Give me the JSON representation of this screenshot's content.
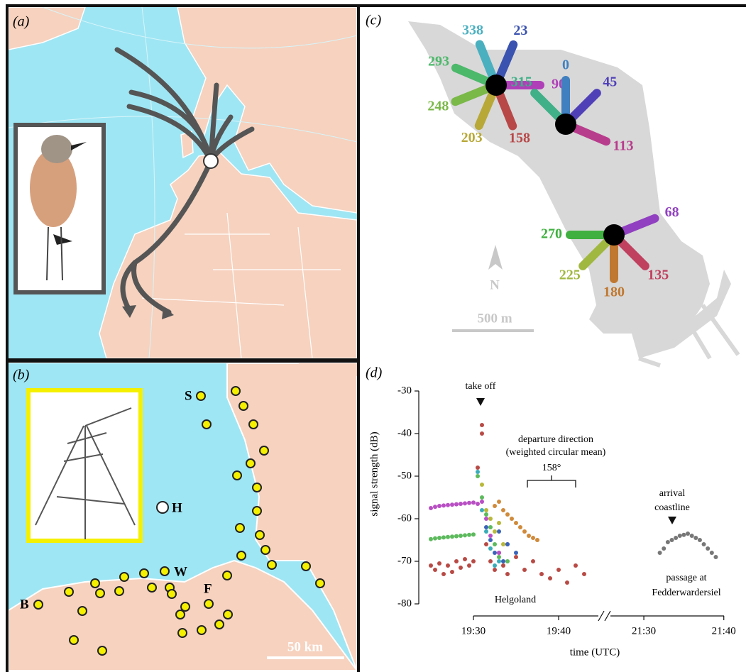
{
  "panel_a": {
    "label": "(a)"
  },
  "panel_b": {
    "label": "(b)",
    "sites": [
      "S",
      "H",
      "W",
      "F",
      "B"
    ],
    "scale": "50 km"
  },
  "panel_c": {
    "label": "(c)",
    "north": "N",
    "scale": "500 m",
    "stations": [
      {
        "antennas": [
          {
            "bearing": 338,
            "color": "#4ab0c0"
          },
          {
            "bearing": 23,
            "color": "#3a52b0"
          },
          {
            "bearing": 293,
            "color": "#4cb86a"
          },
          {
            "bearing": 90,
            "color": "#b040b8"
          },
          {
            "bearing": 248,
            "color": "#7ab848"
          },
          {
            "bearing": 203,
            "color": "#b8a838"
          },
          {
            "bearing": 158,
            "color": "#b84848"
          }
        ]
      },
      {
        "antennas": [
          {
            "bearing": 0,
            "color": "#4080c0"
          },
          {
            "bearing": 45,
            "color": "#5040b8"
          },
          {
            "bearing": 315,
            "color": "#40b088"
          },
          {
            "bearing": 113,
            "color": "#b83c8c"
          }
        ]
      },
      {
        "antennas": [
          {
            "bearing": 68,
            "color": "#9040c0"
          },
          {
            "bearing": 270,
            "color": "#40b040"
          },
          {
            "bearing": 225,
            "color": "#a0b840"
          },
          {
            "bearing": 180,
            "color": "#c07830"
          },
          {
            "bearing": 135,
            "color": "#c04060"
          }
        ]
      }
    ]
  },
  "chart_data": {
    "type": "scatter",
    "panel_label": "(d)",
    "xlabel": "time (UTC)",
    "ylabel": "signal strength (dB)",
    "segments": [
      {
        "xlim": [
          1164,
          1185.5
        ],
        "xticks": [
          {
            "value": 1170,
            "label": "19:30"
          },
          {
            "value": 1180,
            "label": "19:40"
          }
        ]
      },
      {
        "xlim": [
          1286,
          1301
        ],
        "xticks": [
          {
            "value": 1290,
            "label": "21:30"
          },
          {
            "value": 1300,
            "label": "21:40"
          }
        ]
      }
    ],
    "ylim": [
      -80,
      -30
    ],
    "yticks": [
      -30,
      -40,
      -50,
      -60,
      -70,
      -80
    ],
    "annotations": [
      "take off",
      "departure direction",
      "(weighted circular mean)",
      "158°",
      "arrival",
      "coastline",
      "passage at",
      "Fedderwardersiel",
      "Helgoland"
    ],
    "series": [
      {
        "color": "#b84a45",
        "x": [
          1165,
          1165.5,
          1166,
          1166.5,
          1167,
          1167.5,
          1168,
          1168.5,
          1169,
          1169.5,
          1170,
          1170.5,
          1171,
          1171,
          1171.5,
          1172,
          1172.5,
          1173,
          1173.5,
          1174,
          1175,
          1176,
          1177,
          1178,
          1179,
          1180,
          1181,
          1182,
          1183
        ],
        "values": [
          -71,
          -72,
          -70.5,
          -73,
          -71,
          -72.5,
          -70,
          -71.5,
          -69.5,
          -71,
          -70,
          -48,
          -38,
          -40,
          -66,
          -70,
          -72,
          -68,
          -71,
          -73,
          -69,
          -72,
          -70,
          -73,
          -74,
          -72,
          -75,
          -71,
          -73
        ]
      },
      {
        "color": "#b94fc4",
        "x": [
          1165,
          1165.5,
          1166,
          1166.5,
          1167,
          1167.5,
          1168,
          1168.5,
          1169,
          1169.5,
          1170,
          1170.5,
          1171,
          1171.5,
          1172,
          1173,
          1174
        ],
        "values": [
          -57.5,
          -57.2,
          -57,
          -56.9,
          -56.8,
          -56.7,
          -56.6,
          -56.5,
          -56.4,
          -56.3,
          -56.2,
          -56.5,
          -56,
          -60,
          -64,
          -68,
          -66
        ]
      },
      {
        "color": "#5cba5c",
        "x": [
          1165,
          1165.5,
          1166,
          1166.5,
          1167,
          1167.5,
          1168,
          1168.5,
          1169,
          1169.5,
          1170,
          1170.5,
          1171,
          1171.5,
          1172,
          1172.5,
          1173,
          1174
        ],
        "values": [
          -64.8,
          -64.6,
          -64.5,
          -64.4,
          -64.3,
          -64.2,
          -64.1,
          -64,
          -63.9,
          -63.8,
          -63.7,
          -50,
          -55,
          -59,
          -62,
          -66,
          -69,
          -70
        ]
      },
      {
        "color": "#d08a3a",
        "x": [
          1172.5,
          1173,
          1173.5,
          1174,
          1174.5,
          1175,
          1175.5,
          1176,
          1176.5,
          1177,
          1177.5
        ],
        "values": [
          -57,
          -56,
          -58,
          -59,
          -60,
          -61,
          -62,
          -63,
          -64,
          -64.5,
          -65
        ]
      },
      {
        "color": "#b8b83a",
        "x": [
          1171,
          1171.5,
          1172,
          1172.5,
          1173,
          1173.5
        ],
        "values": [
          -52,
          -58,
          -60,
          -63,
          -61,
          -66
        ]
      },
      {
        "color": "#3aacb8",
        "x": [
          1170.5,
          1171,
          1171.5,
          1172,
          1172.5,
          1173
        ],
        "values": [
          -49,
          -58,
          -63,
          -67,
          -71,
          -70
        ]
      },
      {
        "color": "#3a64b8",
        "x": [
          1171.5,
          1172,
          1172.5,
          1173,
          1173.5,
          1174,
          1175
        ],
        "values": [
          -62,
          -65,
          -68,
          -63,
          -70,
          -66,
          -68
        ]
      },
      {
        "color": "#777777",
        "x": [
          1292,
          1292.5,
          1293,
          1293.5,
          1294,
          1294.5,
          1295,
          1295.5,
          1296,
          1296.5,
          1297,
          1297.5,
          1298,
          1298.5,
          1299
        ],
        "values": [
          -68,
          -67,
          -65.5,
          -65,
          -64.5,
          -64,
          -63.8,
          -63.5,
          -64,
          -64.5,
          -65,
          -66,
          -67,
          -68,
          -69
        ]
      }
    ]
  }
}
